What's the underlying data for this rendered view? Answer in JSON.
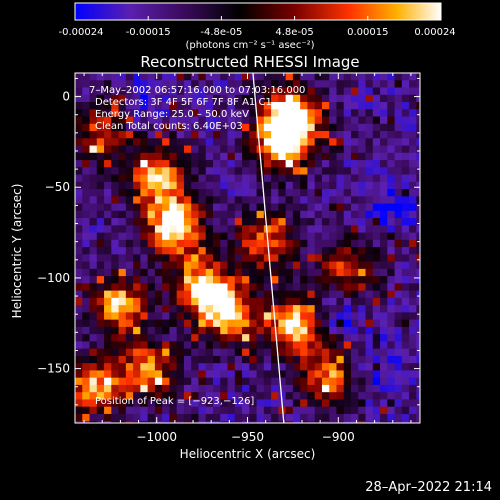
{
  "colorbar": {
    "tick_labels": [
      "-0.00024",
      "-0.00015",
      "-4.8e-05",
      "4.8e-05",
      "0.00015",
      "0.00024"
    ],
    "unit": "(photons cm⁻² s⁻¹ asec⁻²)",
    "colors": [
      "#0000ff",
      "#5a1fb0",
      "#3a0a5a",
      "#000000",
      "#7a0000",
      "#ff3300",
      "#ffb000",
      "#ffffff"
    ]
  },
  "chart_data": {
    "type": "heatmap",
    "title": "Reconstructed RHESSI Image",
    "xlabel": "Heliocentric X (arcsec)",
    "ylabel": "Heliocentric Y (arcsec)",
    "xlim": [
      -1045,
      -855
    ],
    "ylim": [
      -180,
      13
    ],
    "xticks": [
      -1000,
      -950,
      -900
    ],
    "xtick_labels": [
      "−1000",
      "−950",
      "−900"
    ],
    "yticks": [
      0,
      -50,
      -100,
      -150
    ],
    "ytick_labels": [
      "0",
      "−50",
      "−100",
      "−150"
    ],
    "grid": false,
    "limb_line": {
      "x": [
        -947,
        -930
      ],
      "y": [
        13,
        -180
      ]
    },
    "peak": {
      "x": -923,
      "y": -126
    },
    "hot_regions": [
      {
        "x": -1000,
        "y": -45,
        "level": 0.8
      },
      {
        "x": -990,
        "y": -72,
        "level": 1.0
      },
      {
        "x": -975,
        "y": -105,
        "level": 0.9
      },
      {
        "x": -960,
        "y": -120,
        "level": 0.85
      },
      {
        "x": -930,
        "y": -25,
        "level": 1.0
      },
      {
        "x": -925,
        "y": -10,
        "level": 0.9
      },
      {
        "x": -923,
        "y": -126,
        "level": 1.0
      },
      {
        "x": -940,
        "y": -80,
        "level": 0.7
      },
      {
        "x": -1020,
        "y": -115,
        "level": 0.8
      },
      {
        "x": -1005,
        "y": -150,
        "level": 0.75
      },
      {
        "x": -1035,
        "y": -160,
        "level": 0.8
      },
      {
        "x": -905,
        "y": -155,
        "level": 0.7
      },
      {
        "x": -895,
        "y": -95,
        "level": 0.6
      },
      {
        "x": -1030,
        "y": -20,
        "level": 0.6
      }
    ],
    "cold_regions": [
      {
        "x": -905,
        "y": -120,
        "level": 0.8
      },
      {
        "x": -870,
        "y": -60,
        "level": 0.6
      },
      {
        "x": -1010,
        "y": -5,
        "level": 0.5
      },
      {
        "x": -880,
        "y": -150,
        "level": 0.6
      }
    ]
  },
  "annotations": {
    "time_range": "7–May–2002 06:57:16.000 to 07:03:16.000",
    "detectors": "Detectors: 3F 4F 5F 6F 7F 8F  A1 C1",
    "energy": "Energy Range: 25.0 – 50.0 keV",
    "clean": "Clean        Total counts: 6.40E+03",
    "peak": "Position of Peak = [−923,−126]"
  },
  "footer": "28–Apr–2022 21:14"
}
